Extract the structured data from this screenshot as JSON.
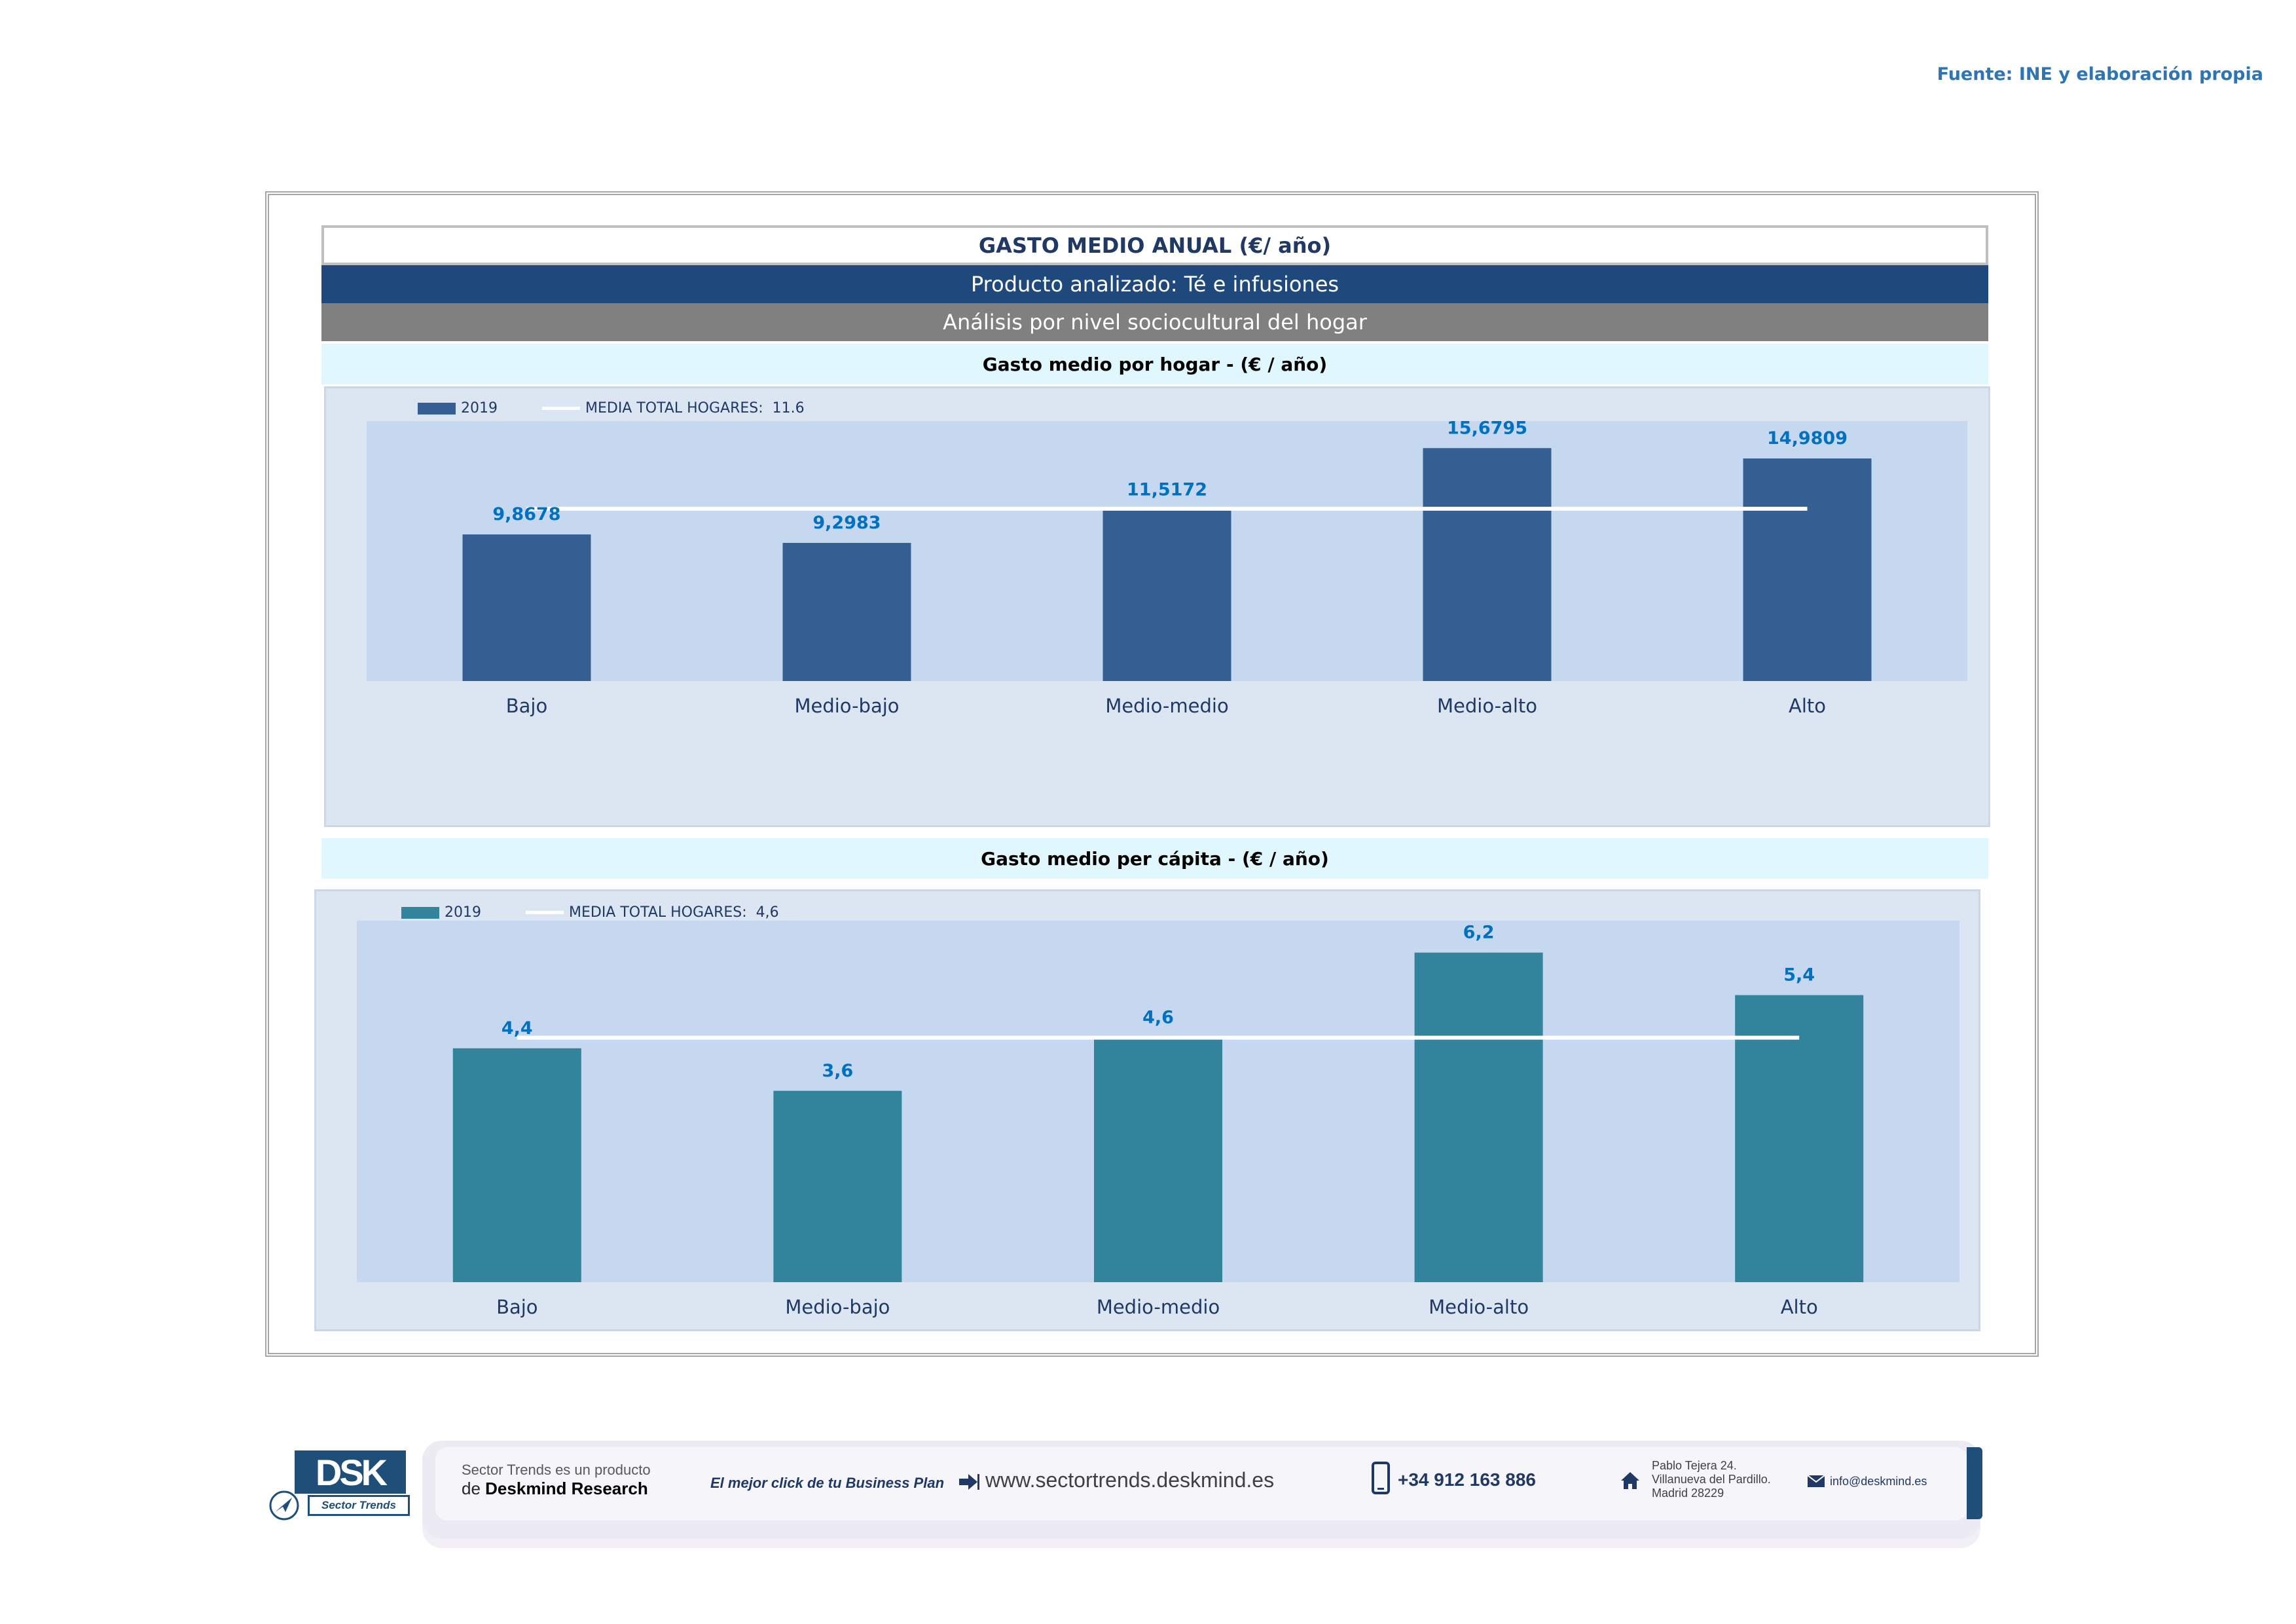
{
  "source_note": "Fuente: INE y elaboración propia",
  "header": {
    "title": "GASTO MEDIO ANUAL (€/ año)",
    "product": "Producto analizado: Té e infusiones",
    "analysis": "Análisis por nivel sociocultural del hogar"
  },
  "chart1_header": "Gasto medio por hogar -  (€ / año)",
  "chart2_header": "Gasto medio per cápita -  (€ / año)",
  "chart_data": [
    {
      "type": "bar",
      "title": "Gasto medio por hogar -  (€ / año)",
      "categories": [
        "Bajo",
        "Medio-bajo",
        "Medio-medio",
        "Medio-alto",
        "Alto"
      ],
      "series": [
        {
          "name": "2019",
          "values": [
            9.8678,
            9.2983,
            11.5172,
            15.6795,
            14.9809
          ],
          "color": "#355e93"
        }
      ],
      "value_labels": [
        "9,8678",
        "9,2983",
        "11,5172",
        "15,6795",
        "14,9809"
      ],
      "average_line": {
        "name": "MEDIA TOTAL  HOGARES:",
        "label": "11.6",
        "value": 11.6,
        "color": "#ffffff"
      },
      "label_color": "#0070c0",
      "ylim": [
        0,
        17.5
      ],
      "grid": false,
      "legend": "top-left"
    },
    {
      "type": "bar",
      "title": "Gasto medio per cápita -  (€ / año)",
      "categories": [
        "Bajo",
        "Medio-bajo",
        "Medio-medio",
        "Medio-alto",
        "Alto"
      ],
      "series": [
        {
          "name": "2019",
          "values": [
            4.4,
            3.6,
            4.6,
            6.2,
            5.4
          ],
          "color": "#31849b"
        }
      ],
      "value_labels": [
        "4,4",
        "3,6",
        "4,6",
        "6,2",
        "5,4"
      ],
      "average_line": {
        "name": "MEDIA TOTAL  HOGARES:",
        "label": "4,6",
        "value": 4.6,
        "color": "#ffffff"
      },
      "label_color": "#0070c0",
      "ylim": [
        0,
        6.8
      ],
      "grid": false,
      "legend": "top-left"
    }
  ],
  "footer": {
    "logo_text": "DSK",
    "logo_sub": "Sector Trends",
    "product_line1": "Sector Trends es un producto",
    "product_line2_prefix": "de ",
    "product_line2_brand": "Deskmind Research",
    "slogan": "El mejor click de tu Business Plan",
    "website": "www.sectortrends.deskmind.es",
    "phone": "+34 912 163 886",
    "address_line1": "Pablo Tejera 24.",
    "address_line2": "Villanueva del Pardillo.",
    "address_line3": "Madrid 28229",
    "email": "info@deskmind.es",
    "icons": [
      "arrow-right-icon",
      "phone-icon",
      "house-icon",
      "envelope-icon"
    ]
  }
}
